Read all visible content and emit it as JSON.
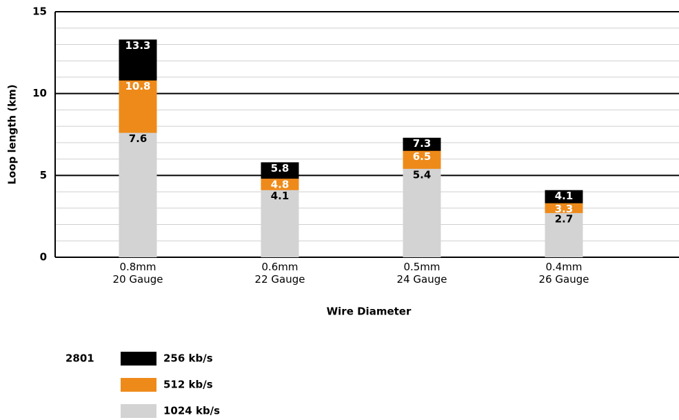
{
  "chart_data": {
    "type": "bar",
    "layout": "overlap",
    "xlabel": "Wire Diameter",
    "ylabel": "Loop length (km)",
    "categories": [
      [
        "0.8mm",
        "20 Gauge"
      ],
      [
        "0.6mm",
        "22 Gauge"
      ],
      [
        "0.5mm",
        "24 Gauge"
      ],
      [
        "0.4mm",
        "26 Gauge"
      ]
    ],
    "series": [
      {
        "name": "256 kb/s",
        "color": "#000000",
        "label_color": "#ffffff",
        "values": [
          13.3,
          5.8,
          7.3,
          4.1
        ]
      },
      {
        "name": "512 kb/s",
        "color": "#ee8a1a",
        "label_color": "#ffffff",
        "values": [
          10.8,
          4.8,
          6.5,
          3.3
        ]
      },
      {
        "name": "1024 kb/s",
        "color": "#d3d3d3",
        "label_color": "#000000",
        "values": [
          7.6,
          4.1,
          5.4,
          2.7
        ]
      }
    ],
    "legend_title": "2801",
    "ylim": [
      0,
      15
    ],
    "yticks": [
      0,
      5,
      10,
      15
    ],
    "minor_yticks": [
      1,
      2,
      3,
      4,
      6,
      7,
      8,
      9,
      11,
      12,
      13,
      14
    ],
    "grid": true
  }
}
